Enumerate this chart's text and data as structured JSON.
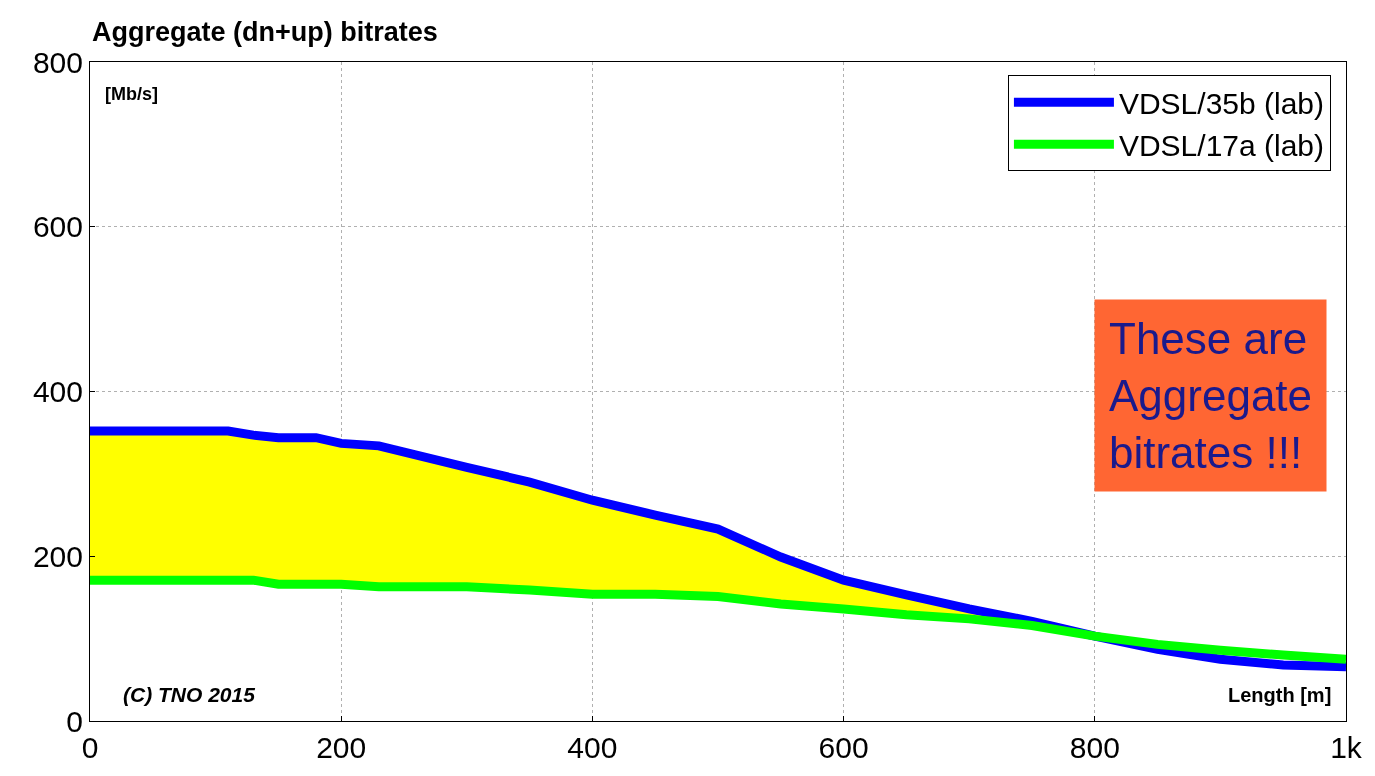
{
  "chart_data": {
    "type": "line",
    "title": "Aggregate (dn+up) bitrates",
    "xlabel": "Length [m]",
    "ylabel": "[Mb/s]",
    "x": [
      0,
      110,
      130,
      150,
      180,
      200,
      230,
      300,
      350,
      400,
      450,
      500,
      550,
      600,
      650,
      700,
      750,
      800,
      850,
      900,
      950,
      1000
    ],
    "series": [
      {
        "name": "VDSL/35b (lab)",
        "color": "#0000ff",
        "values": [
          352,
          352,
          347,
          344,
          344,
          337,
          334,
          308,
          290,
          268,
          250,
          233,
          199,
          171,
          153,
          136,
          121,
          103,
          87,
          75,
          68,
          66
        ],
        "lower": [
          171,
          171,
          171,
          166,
          166,
          166,
          163,
          163,
          159,
          154,
          154,
          151,
          142,
          136,
          129,
          124,
          116,
          103,
          87,
          75,
          68,
          66
        ],
        "upper": [
          352,
          352,
          347,
          344,
          344,
          337,
          334,
          308,
          290,
          268,
          250,
          233,
          199,
          171,
          153,
          136,
          121,
          103,
          87,
          75,
          68,
          66
        ]
      },
      {
        "name": "VDSL/17a (lab)",
        "color": "#00ff00",
        "values": [
          171,
          171,
          171,
          166,
          166,
          166,
          163,
          163,
          159,
          154,
          154,
          151,
          142,
          136,
          129,
          124,
          116,
          103,
          93,
          86,
          80,
          75
        ]
      }
    ],
    "xlim": [
      0,
      1000
    ],
    "ylim": [
      0,
      800
    ],
    "xticks": [
      0,
      200,
      400,
      600,
      800,
      {
        "value": 1000,
        "label": "1k"
      }
    ],
    "yticks": [
      0,
      200,
      400,
      600,
      800
    ],
    "grid": true,
    "legend": "top right",
    "line_style": "solid",
    "marker": "none",
    "annotations": [
      "These are\nAggregate\nbitrates !!!",
      "(C) TNO 2015"
    ]
  }
}
